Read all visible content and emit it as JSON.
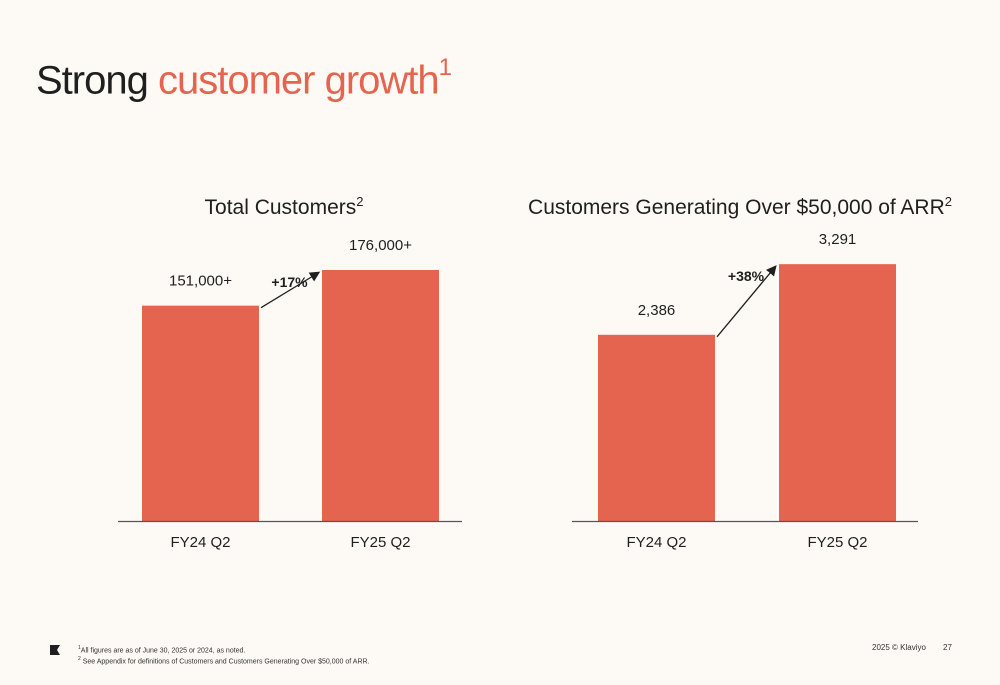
{
  "slide": {
    "title_main": "Strong",
    "title_accent": "customer growth",
    "title_sup": "1",
    "footnotes": [
      {
        "mark": "1",
        "text": "All figures are as of June 30, 2025 or 2024, as noted."
      },
      {
        "mark": "2",
        "text": " See Appendix for definitions of Customers and Customers Generating Over $50,000 of ARR."
      }
    ],
    "copyright": "2025 © Klaviyo",
    "page_number": "27"
  },
  "colors": {
    "bar": "#e5644f",
    "accent": "#e5644f",
    "text": "#1f1f1f"
  },
  "chart_data": [
    {
      "type": "bar",
      "title": "Total Customers",
      "title_sup": "2",
      "categories": [
        "FY24 Q2",
        "FY25 Q2"
      ],
      "values": [
        151000,
        176000
      ],
      "data_labels": [
        "151,000+",
        "176,000+"
      ],
      "growth_label": "+17%",
      "ylim": [
        0,
        176000
      ]
    },
    {
      "type": "bar",
      "title": "Customers Generating Over $50,000 of ARR",
      "title_sup": "2",
      "categories": [
        "FY24 Q2",
        "FY25 Q2"
      ],
      "values": [
        2386,
        3291
      ],
      "data_labels": [
        "2,386",
        "3,291"
      ],
      "growth_label": "+38%",
      "ylim": [
        0,
        3985
      ]
    }
  ]
}
